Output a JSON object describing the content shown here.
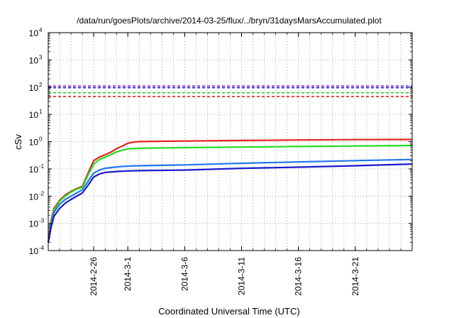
{
  "chart_data": {
    "type": "line",
    "title": "/data/run/goesPlots/archive/2014-03-25/flux/../bryn/31daysMarsAccumulated.plot",
    "xlabel": "Coordinated Universal Time (UTC)",
    "ylabel": "cSv",
    "yscale": "log",
    "ylim": [
      0.0001,
      10000
    ],
    "xlim": [
      "2014-02-22",
      "2014-03-26"
    ],
    "grid": true,
    "legend": "none",
    "y_ticks": [
      {
        "value": 0.0001,
        "base": "10",
        "exp": "-4"
      },
      {
        "value": 0.001,
        "base": "10",
        "exp": "-3"
      },
      {
        "value": 0.01,
        "base": "10",
        "exp": "-2"
      },
      {
        "value": 0.1,
        "base": "10",
        "exp": "-1"
      },
      {
        "value": 1,
        "base": "10",
        "exp": "0"
      },
      {
        "value": 10,
        "base": "10",
        "exp": "1"
      },
      {
        "value": 100,
        "base": "10",
        "exp": "2"
      },
      {
        "value": 1000,
        "base": "10",
        "exp": "3"
      },
      {
        "value": 10000,
        "base": "10",
        "exp": "4"
      }
    ],
    "x_ticks": [
      {
        "date": "2014-02-26",
        "label": "2014-2-26"
      },
      {
        "date": "2014-03-01",
        "label": "2014-3-1"
      },
      {
        "date": "2014-03-06",
        "label": "2014-3-6"
      },
      {
        "date": "2014-03-11",
        "label": "2014-3-11"
      },
      {
        "date": "2014-03-16",
        "label": "2014-3-16"
      },
      {
        "date": "2014-03-21",
        "label": "2014-3-21"
      }
    ],
    "x_minor_grid": [
      "2014-02-23",
      "2014-02-24",
      "2014-02-25",
      "2014-02-26",
      "2014-02-27",
      "2014-02-28",
      "2014-03-01",
      "2014-03-02",
      "2014-03-03",
      "2014-03-04",
      "2014-03-05",
      "2014-03-06",
      "2014-03-07",
      "2014-03-08",
      "2014-03-09",
      "2014-03-10",
      "2014-03-11",
      "2014-03-12",
      "2014-03-13",
      "2014-03-14",
      "2014-03-15",
      "2014-03-16",
      "2014-03-17",
      "2014-03-18",
      "2014-03-19",
      "2014-03-20",
      "2014-03-21",
      "2014-03-22",
      "2014-03-23",
      "2014-03-24",
      "2014-03-25"
    ],
    "reference_lines": [
      {
        "y": 110,
        "color": "#8a2be2",
        "style": "dashed"
      },
      {
        "y": 95,
        "color": "#1a1adc",
        "style": "dashed"
      },
      {
        "y": 62,
        "color": "#22cc22",
        "style": "dashed"
      },
      {
        "y": 45,
        "color": "#e02020",
        "style": "dashed"
      }
    ],
    "series": [
      {
        "color": "#e52222",
        "points": [
          [
            "2014-02-22 00:00",
            0.0002
          ],
          [
            "2014-02-22 06:00",
            0.0013
          ],
          [
            "2014-02-22 12:00",
            0.0035
          ],
          [
            "2014-02-23 00:00",
            0.007
          ],
          [
            "2014-02-23 12:00",
            0.011
          ],
          [
            "2014-02-24 00:00",
            0.015
          ],
          [
            "2014-02-24 12:00",
            0.019
          ],
          [
            "2014-02-25 00:00",
            0.023
          ],
          [
            "2014-02-25 12:00",
            0.07
          ],
          [
            "2014-02-26 00:00",
            0.2
          ],
          [
            "2014-02-26 12:00",
            0.27
          ],
          [
            "2014-02-27 00:00",
            0.33
          ],
          [
            "2014-02-27 12:00",
            0.41
          ],
          [
            "2014-02-28 00:00",
            0.55
          ],
          [
            "2014-02-28 12:00",
            0.68
          ],
          [
            "2014-03-01 00:00",
            0.87
          ],
          [
            "2014-03-01 12:00",
            0.96
          ],
          [
            "2014-03-02 00:00",
            1.0
          ],
          [
            "2014-03-04 00:00",
            1.03
          ],
          [
            "2014-03-06 00:00",
            1.05
          ],
          [
            "2014-03-11 00:00",
            1.1
          ],
          [
            "2014-03-16 00:00",
            1.15
          ],
          [
            "2014-03-21 00:00",
            1.18
          ],
          [
            "2014-03-26 00:00",
            1.2
          ]
        ]
      },
      {
        "color": "#22dd22",
        "points": [
          [
            "2014-02-22 00:00",
            0.0002
          ],
          [
            "2014-02-22 06:00",
            0.0011
          ],
          [
            "2014-02-22 12:00",
            0.003
          ],
          [
            "2014-02-23 00:00",
            0.0065
          ],
          [
            "2014-02-23 12:00",
            0.01
          ],
          [
            "2014-02-24 00:00",
            0.014
          ],
          [
            "2014-02-24 12:00",
            0.018
          ],
          [
            "2014-02-25 00:00",
            0.021
          ],
          [
            "2014-02-25 12:00",
            0.06
          ],
          [
            "2014-02-26 00:00",
            0.15
          ],
          [
            "2014-02-26 12:00",
            0.22
          ],
          [
            "2014-02-27 00:00",
            0.27
          ],
          [
            "2014-02-27 12:00",
            0.33
          ],
          [
            "2014-02-28 00:00",
            0.42
          ],
          [
            "2014-02-28 12:00",
            0.48
          ],
          [
            "2014-03-01 00:00",
            0.54
          ],
          [
            "2014-03-02 00:00",
            0.57
          ],
          [
            "2014-03-06 00:00",
            0.6
          ],
          [
            "2014-03-11 00:00",
            0.63
          ],
          [
            "2014-03-16 00:00",
            0.66
          ],
          [
            "2014-03-21 00:00",
            0.69
          ],
          [
            "2014-03-26 00:00",
            0.72
          ]
        ]
      },
      {
        "color": "#2277ee",
        "points": [
          [
            "2014-02-22 00:00",
            0.0002
          ],
          [
            "2014-02-22 06:00",
            0.0009
          ],
          [
            "2014-02-22 12:00",
            0.0025
          ],
          [
            "2014-02-23 00:00",
            0.005
          ],
          [
            "2014-02-23 12:00",
            0.0075
          ],
          [
            "2014-02-24 00:00",
            0.01
          ],
          [
            "2014-02-24 12:00",
            0.013
          ],
          [
            "2014-02-25 00:00",
            0.017
          ],
          [
            "2014-02-25 12:00",
            0.035
          ],
          [
            "2014-02-26 00:00",
            0.07
          ],
          [
            "2014-02-26 12:00",
            0.09
          ],
          [
            "2014-02-27 00:00",
            0.105
          ],
          [
            "2014-02-28 00:00",
            0.118
          ],
          [
            "2014-03-01 00:00",
            0.126
          ],
          [
            "2014-03-02 00:00",
            0.13
          ],
          [
            "2014-03-06 00:00",
            0.14
          ],
          [
            "2014-03-11 00:00",
            0.16
          ],
          [
            "2014-03-16 00:00",
            0.18
          ],
          [
            "2014-03-21 00:00",
            0.2
          ],
          [
            "2014-03-26 00:00",
            0.22
          ]
        ]
      },
      {
        "color": "#1a1acc",
        "points": [
          [
            "2014-02-22 00:00",
            0.0002
          ],
          [
            "2014-02-22 06:00",
            0.0007
          ],
          [
            "2014-02-22 12:00",
            0.0018
          ],
          [
            "2014-02-23 00:00",
            0.0035
          ],
          [
            "2014-02-23 12:00",
            0.0055
          ],
          [
            "2014-02-24 00:00",
            0.0075
          ],
          [
            "2014-02-24 12:00",
            0.01
          ],
          [
            "2014-02-25 00:00",
            0.013
          ],
          [
            "2014-02-25 12:00",
            0.025
          ],
          [
            "2014-02-26 00:00",
            0.05
          ],
          [
            "2014-02-26 12:00",
            0.065
          ],
          [
            "2014-02-27 00:00",
            0.074
          ],
          [
            "2014-02-28 00:00",
            0.08
          ],
          [
            "2014-03-01 00:00",
            0.084
          ],
          [
            "2014-03-02 00:00",
            0.086
          ],
          [
            "2014-03-06 00:00",
            0.09
          ],
          [
            "2014-03-11 00:00",
            0.105
          ],
          [
            "2014-03-16 00:00",
            0.115
          ],
          [
            "2014-03-21 00:00",
            0.13
          ],
          [
            "2014-03-26 00:00",
            0.15
          ]
        ]
      }
    ]
  }
}
